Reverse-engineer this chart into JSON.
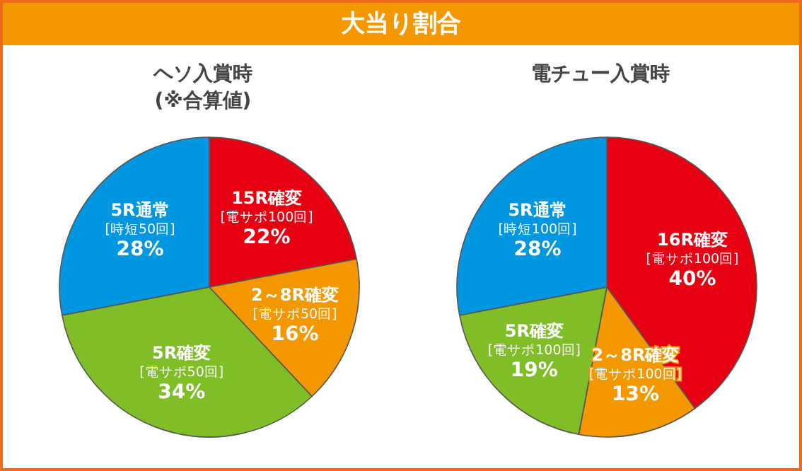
{
  "chart_data": [
    {
      "type": "pie",
      "title": "大当り割合",
      "subtitle": "ヘソ入賞時\n(※合算値)",
      "categories": [
        "15R確変\n[電サポ100回]",
        "2～8R確変\n[電サポ50回]",
        "5R確変\n[電サポ50回]",
        "5R通常\n[時短50回]"
      ],
      "values": [
        22,
        16,
        34,
        28
      ],
      "value_labels": [
        "22%",
        "16%",
        "34%",
        "28%"
      ],
      "colors": [
        "#e60012",
        "#f39800",
        "#7fbe26",
        "#0097e0"
      ],
      "legend": false
    },
    {
      "type": "pie",
      "subtitle": "電チュー入賞時",
      "categories": [
        "16R確変\n[電サポ100回]",
        "2～8R確変\n[電サポ100回]",
        "5R確変\n[電サポ100回]",
        "5R通常\n[時短100回]"
      ],
      "values": [
        40,
        13,
        19,
        28
      ],
      "value_labels": [
        "40%",
        "13%",
        "19%",
        "28%"
      ],
      "colors": [
        "#e60012",
        "#f39800",
        "#7fbe26",
        "#0097e0"
      ],
      "legend": false
    }
  ]
}
